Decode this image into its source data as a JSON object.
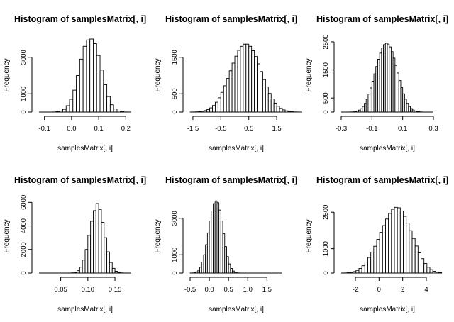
{
  "chart_data": [
    {
      "type": "bar",
      "title": "Histogram of samplesMatrix[, i]",
      "xlabel": "samplesMatrix[, i]",
      "ylabel": "Frequency",
      "x_range": [
        -0.12,
        0.22
      ],
      "bin_width": 0.0125,
      "xticks": [
        -0.1,
        0.0,
        0.1,
        0.2
      ],
      "xtick_labels": [
        "-0.1",
        "0.0",
        "0.1",
        "0.2"
      ],
      "yticks": [
        0,
        1000,
        3000
      ],
      "ylim": [
        0,
        4000
      ],
      "values": [
        0,
        0,
        0,
        0,
        5,
        20,
        60,
        150,
        350,
        700,
        1200,
        2000,
        2900,
        3600,
        3950,
        4000,
        3750,
        3100,
        2300,
        1500,
        850,
        400,
        170,
        60,
        20,
        5,
        0
      ]
    },
    {
      "type": "bar",
      "title": "Histogram of samplesMatrix[, i]",
      "xlabel": "samplesMatrix[, i]",
      "ylabel": "Frequency",
      "x_range": [
        -1.6,
        1.7
      ],
      "bin_width": 0.1,
      "xticks": [
        -1.5,
        -0.5,
        0.5,
        1.5
      ],
      "xtick_labels": [
        "-1.5",
        "-0.5",
        "0.5",
        "1.5"
      ],
      "yticks": [
        0,
        500,
        1500
      ],
      "ylim": [
        0,
        2000
      ],
      "values": [
        1,
        3,
        6,
        12,
        22,
        40,
        70,
        115,
        180,
        270,
        390,
        540,
        720,
        920,
        1130,
        1340,
        1530,
        1690,
        1800,
        1860,
        1860,
        1800,
        1680,
        1520,
        1320,
        1110,
        890,
        690,
        510,
        360,
        245,
        160,
        100,
        60,
        34,
        18,
        9,
        4,
        2,
        1
      ]
    },
    {
      "type": "bar",
      "title": "Histogram of samplesMatrix[, i]",
      "xlabel": "samplesMatrix[, i]",
      "ylabel": "Frequency",
      "x_range": [
        -0.3,
        0.3
      ],
      "bin_width": 0.0125,
      "xticks": [
        -0.3,
        -0.1,
        0.1,
        0.3
      ],
      "xtick_labels": [
        "-0.3",
        "-0.1",
        "0.1",
        "0.3"
      ],
      "yticks": [
        0,
        500,
        1500,
        2500
      ],
      "ylim": [
        0,
        2600
      ],
      "values": [
        0,
        0,
        0,
        0,
        2,
        5,
        10,
        20,
        40,
        70,
        120,
        200,
        310,
        460,
        640,
        860,
        1100,
        1360,
        1620,
        1880,
        2100,
        2280,
        2400,
        2450,
        2420,
        2320,
        2150,
        1920,
        1660,
        1390,
        1120,
        870,
        650,
        460,
        310,
        200,
        125,
        75,
        42,
        22,
        11,
        5,
        2,
        0,
        0,
        0,
        0,
        0
      ]
    },
    {
      "type": "bar",
      "title": "Histogram of samplesMatrix[, i]",
      "xlabel": "samplesMatrix[, i]",
      "ylabel": "Frequency",
      "x_range": [
        0.01,
        0.18
      ],
      "bin_width": 0.005,
      "xticks": [
        0.05,
        0.1,
        0.15
      ],
      "xtick_labels": [
        "0.05",
        "0.10",
        "0.15"
      ],
      "yticks": [
        0,
        2000,
        4000,
        6000
      ],
      "ylim": [
        0,
        6200
      ],
      "values": [
        0,
        0,
        0,
        0,
        0,
        0,
        0,
        0,
        0,
        0,
        0,
        5,
        20,
        60,
        200,
        500,
        1100,
        2000,
        3200,
        4400,
        5300,
        5900,
        5400,
        4300,
        3000,
        1800,
        900,
        400,
        150,
        50,
        15,
        5,
        1,
        0
      ]
    },
    {
      "type": "bar",
      "title": "Histogram of samplesMatrix[, i]",
      "xlabel": "samplesMatrix[, i]",
      "ylabel": "Frequency",
      "x_range": [
        -0.5,
        1.9
      ],
      "bin_width": 0.05,
      "xticks": [
        -0.5,
        0.0,
        0.5,
        1.0,
        1.5
      ],
      "xtick_labels": [
        "-0.5",
        "0.0",
        "0.5",
        "1.0",
        "1.5"
      ],
      "yticks": [
        0,
        1000,
        3000
      ],
      "ylim": [
        0,
        4000
      ],
      "values": [
        2,
        8,
        25,
        70,
        160,
        320,
        600,
        1000,
        1550,
        2200,
        2850,
        3400,
        3800,
        3950,
        3850,
        3450,
        2850,
        2150,
        1450,
        900,
        500,
        250,
        110,
        45,
        15,
        5,
        2,
        0,
        0,
        0,
        0,
        0,
        0,
        0,
        0,
        0,
        0,
        0,
        0,
        0,
        0,
        0,
        0,
        0,
        0,
        0,
        0,
        0
      ]
    },
    {
      "type": "bar",
      "title": "Histogram of samplesMatrix[, i]",
      "xlabel": "samplesMatrix[, i]",
      "ylabel": "Frequency",
      "x_range": [
        -3.2,
        4.6
      ],
      "bin_width": 0.25,
      "xticks": [
        -2,
        0,
        2,
        4
      ],
      "xtick_labels": [
        "-2",
        "0",
        "2",
        "4"
      ],
      "yticks": [
        0,
        1000,
        2500
      ],
      "ylim": [
        0,
        3000
      ],
      "values": [
        0,
        5,
        15,
        30,
        60,
        110,
        190,
        300,
        450,
        640,
        860,
        1100,
        1380,
        1670,
        1950,
        2220,
        2450,
        2620,
        2700,
        2680,
        2550,
        2330,
        2050,
        1740,
        1420,
        1110,
        830,
        590,
        390,
        240,
        140,
        75,
        35,
        15
      ]
    }
  ]
}
